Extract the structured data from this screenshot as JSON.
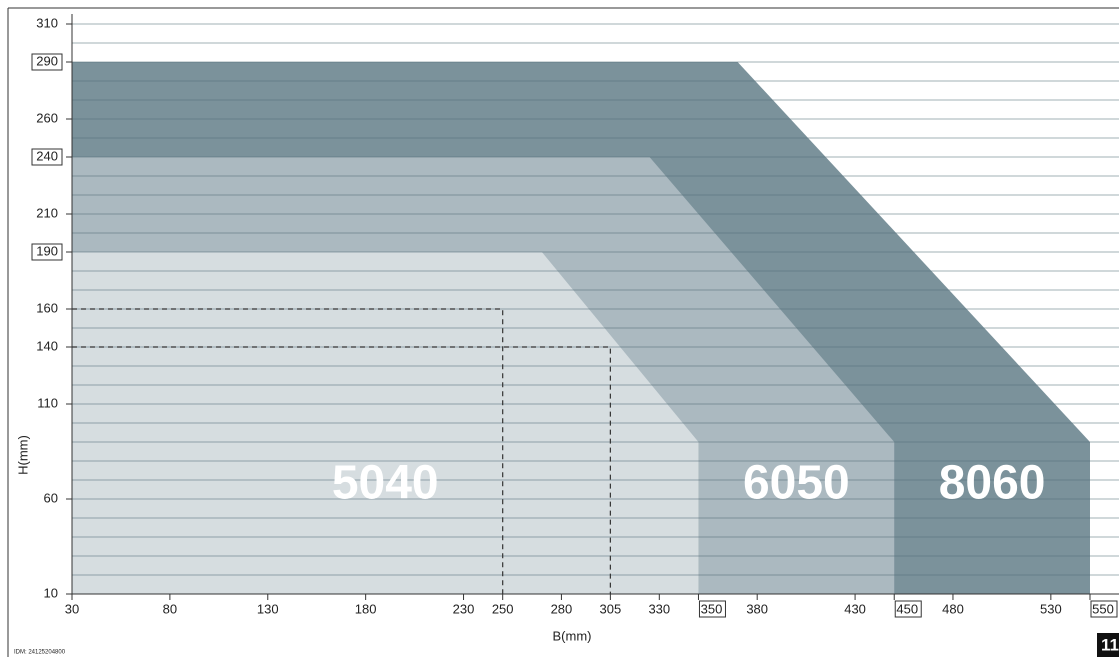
{
  "chart_data": {
    "type": "region",
    "x_label": "B(mm)",
    "y_label": "H(mm)",
    "xlim": [
      30,
      550
    ],
    "ylim": [
      10,
      310
    ],
    "xticks": [
      30,
      80,
      130,
      180,
      230,
      250,
      280,
      305,
      330,
      350,
      380,
      430,
      450,
      480,
      530,
      550
    ],
    "yticks": [
      10,
      60,
      110,
      140,
      160,
      190,
      210,
      240,
      260,
      290,
      310
    ],
    "grid_step": 10,
    "series": [
      {
        "name": "8060",
        "color": "#7b929b",
        "x": [
          30,
          30,
          370,
          550,
          550
        ],
        "y": [
          10,
          290,
          290,
          90,
          10
        ]
      },
      {
        "name": "6050",
        "color": "#abb9c0",
        "x": [
          30,
          30,
          325,
          450,
          450
        ],
        "y": [
          10,
          240,
          240,
          90,
          10
        ]
      },
      {
        "name": "5040",
        "color": "#d6dde0",
        "x": [
          30,
          30,
          270,
          350,
          350
        ],
        "y": [
          10,
          190,
          190,
          90,
          10
        ]
      }
    ],
    "guides": [
      {
        "x": 250,
        "y": 160
      },
      {
        "x": 305,
        "y": 140
      }
    ],
    "footer": "IDM: 24125204800",
    "page_number": "11"
  }
}
